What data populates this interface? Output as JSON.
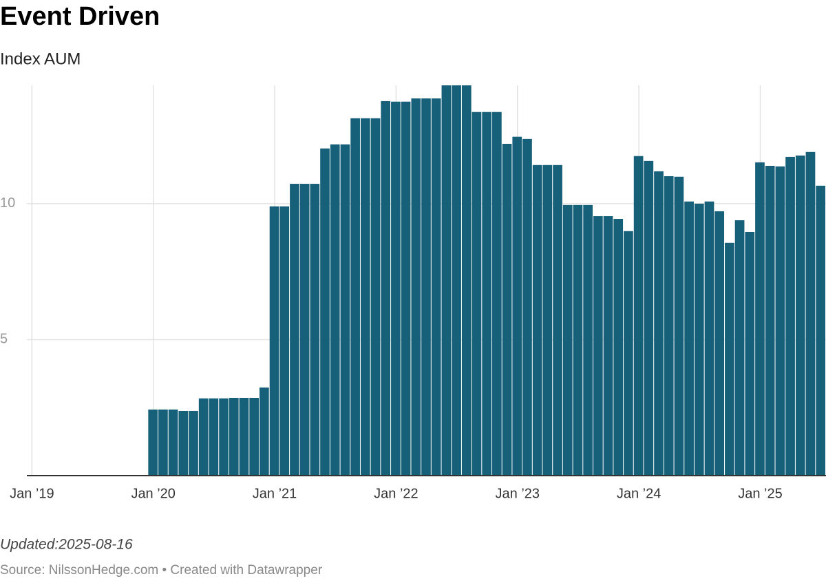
{
  "chart_data": {
    "type": "bar",
    "title": "Event Driven",
    "subtitle": "Index AUM",
    "note": "Updated:2025-08-16",
    "source": "Source: NilssonHedge.com • Created with Datawrapper",
    "color": "#17607a",
    "grid": true,
    "x": [
      "2020-01",
      "2020-02",
      "2020-03",
      "2020-04",
      "2020-05",
      "2020-06",
      "2020-07",
      "2020-08",
      "2020-09",
      "2020-10",
      "2020-11",
      "2020-12",
      "2021-01",
      "2021-02",
      "2021-03",
      "2021-04",
      "2021-05",
      "2021-06",
      "2021-07",
      "2021-08",
      "2021-09",
      "2021-10",
      "2021-11",
      "2021-12",
      "2022-01",
      "2022-02",
      "2022-03",
      "2022-04",
      "2022-05",
      "2022-06",
      "2022-07",
      "2022-08",
      "2022-09",
      "2022-10",
      "2022-11",
      "2022-12",
      "2023-01",
      "2023-02",
      "2023-03",
      "2023-04",
      "2023-05",
      "2023-06",
      "2023-07",
      "2023-08",
      "2023-09",
      "2023-10",
      "2023-11",
      "2023-12",
      "2024-01",
      "2024-02",
      "2024-03",
      "2024-04",
      "2024-05",
      "2024-06",
      "2024-07",
      "2024-08",
      "2024-09",
      "2024-10",
      "2024-11",
      "2024-12",
      "2025-01",
      "2025-02",
      "2025-03",
      "2025-04",
      "2025-05",
      "2025-06",
      "2025-07"
    ],
    "values": [
      2.43,
      2.43,
      2.43,
      2.38,
      2.38,
      2.84,
      2.84,
      2.84,
      2.86,
      2.86,
      2.86,
      3.24,
      9.9,
      9.9,
      10.73,
      10.73,
      10.73,
      12.03,
      12.18,
      12.18,
      13.14,
      13.14,
      13.14,
      13.77,
      13.75,
      13.75,
      13.87,
      13.87,
      13.87,
      14.35,
      14.35,
      14.35,
      13.37,
      13.37,
      13.37,
      12.2,
      12.46,
      12.38,
      11.42,
      11.42,
      11.42,
      9.95,
      9.95,
      9.95,
      9.54,
      9.54,
      9.44,
      8.99,
      11.75,
      11.57,
      11.19,
      11.01,
      10.99,
      10.08,
      10.0,
      10.08,
      9.72,
      8.56,
      9.39,
      8.96,
      11.52,
      11.39,
      11.37,
      11.72,
      11.77,
      11.9,
      10.66
    ],
    "xlim": [
      "2019-01",
      "2025-07"
    ],
    "xticks": [
      {
        "value": "2019-01",
        "label": "Jan ’19"
      },
      {
        "value": "2020-01",
        "label": "Jan ’20"
      },
      {
        "value": "2021-01",
        "label": "Jan ’21"
      },
      {
        "value": "2022-01",
        "label": "Jan ’22"
      },
      {
        "value": "2023-01",
        "label": "Jan ’23"
      },
      {
        "value": "2024-01",
        "label": "Jan ’24"
      },
      {
        "value": "2025-01",
        "label": "Jan ’25"
      }
    ],
    "ylim": [
      0,
      14.35
    ],
    "yticks": [
      5,
      10
    ]
  }
}
